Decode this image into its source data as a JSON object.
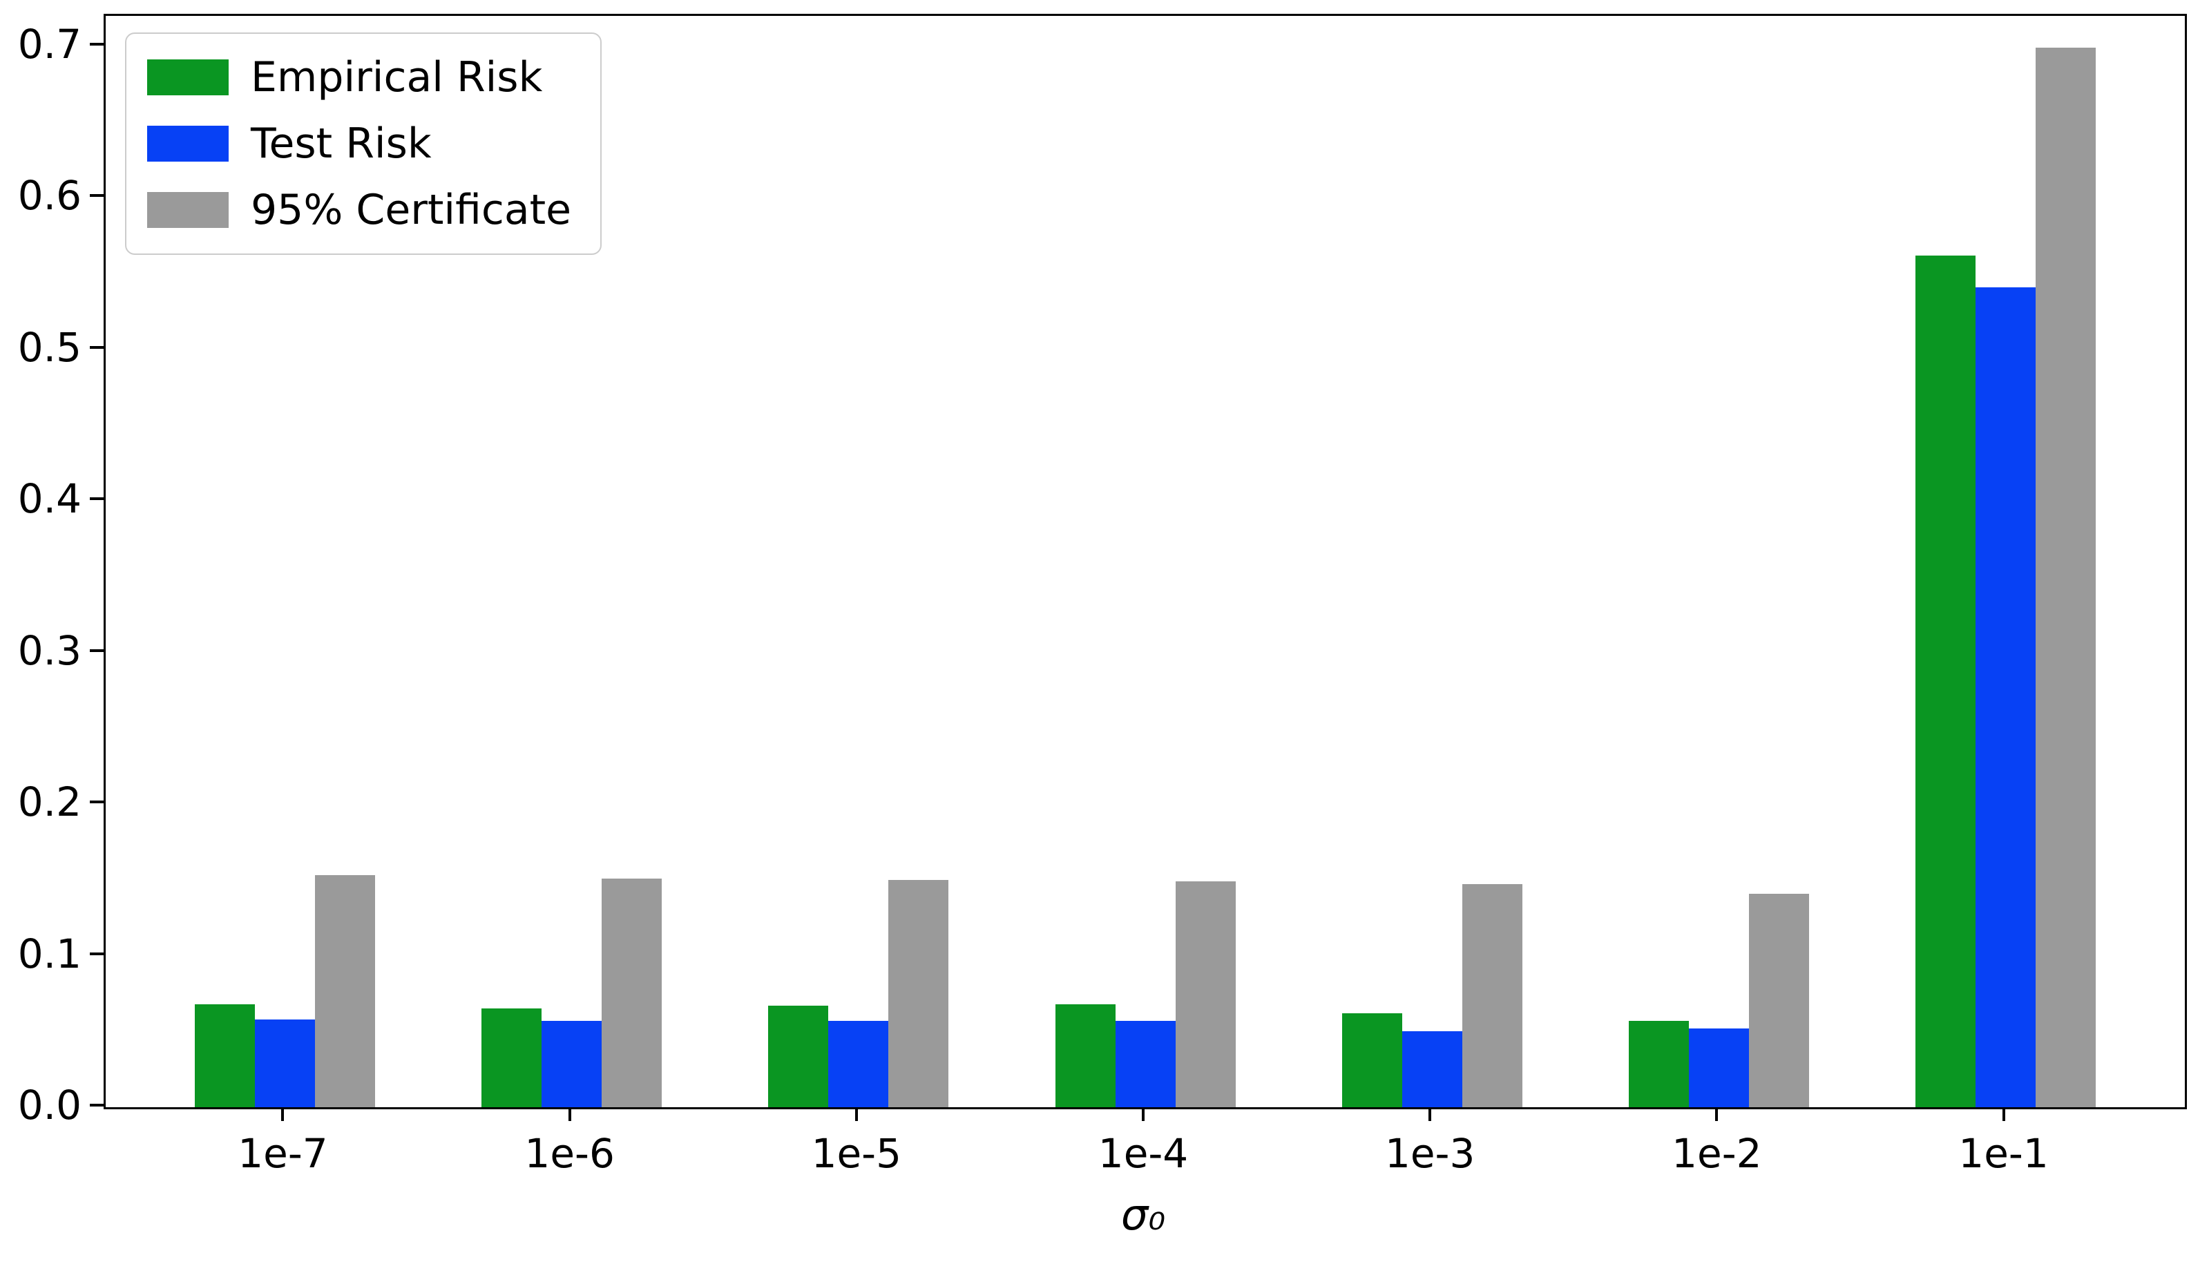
{
  "chart_data": {
    "type": "bar",
    "title": "",
    "xlabel": "σ₀",
    "ylabel": "",
    "categories": [
      "1e-7",
      "1e-6",
      "1e-5",
      "1e-4",
      "1e-3",
      "1e-2",
      "1e-1"
    ],
    "series": [
      {
        "name": "Empirical Risk",
        "color": "#0a9622",
        "values": [
          0.068,
          0.065,
          0.067,
          0.068,
          0.062,
          0.057,
          0.562
        ]
      },
      {
        "name": "Test Risk",
        "color": "#0741f5",
        "values": [
          0.058,
          0.057,
          0.057,
          0.057,
          0.05,
          0.052,
          0.541
        ]
      },
      {
        "name": "95% Certificate",
        "color": "#9a9a9a",
        "values": [
          0.153,
          0.151,
          0.15,
          0.149,
          0.147,
          0.141,
          0.699
        ]
      }
    ],
    "ytick_values": [
      0.0,
      0.1,
      0.2,
      0.3,
      0.4,
      0.5,
      0.6,
      0.7
    ],
    "ytick_labels": [
      "0.0",
      "0.1",
      "0.2",
      "0.3",
      "0.4",
      "0.5",
      "0.6",
      "0.7"
    ],
    "ylim": [
      0,
      0.72
    ],
    "grid": false,
    "legend_position": "upper-left"
  }
}
